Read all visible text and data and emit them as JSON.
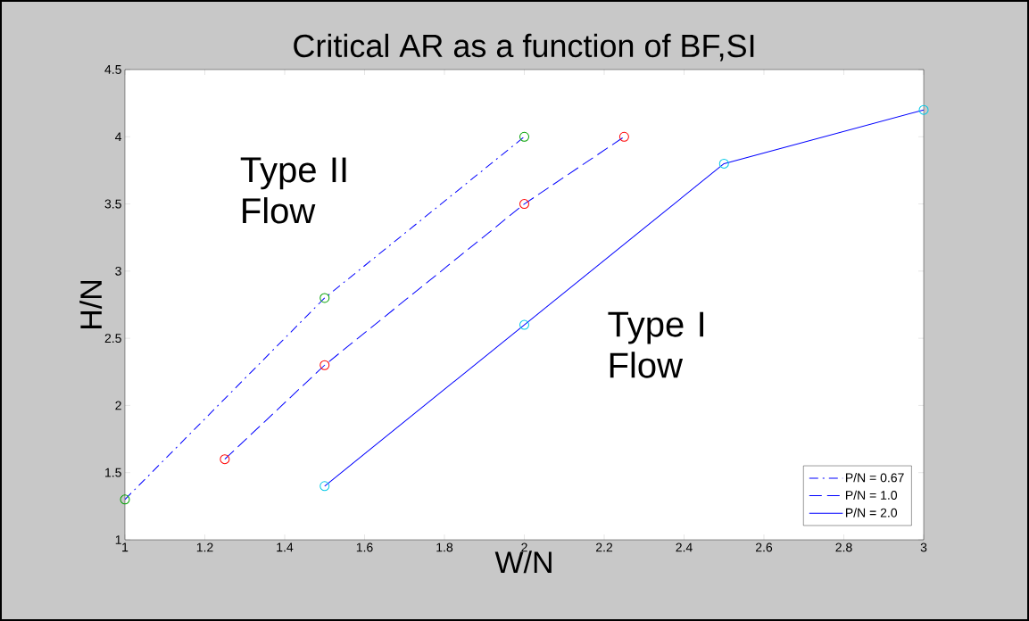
{
  "chart_data": {
    "type": "line",
    "title": "Critical AR as a function of BF,SI",
    "xlabel": "W/N",
    "ylabel": "H/N",
    "series": [
      {
        "name": "P/N = 0.67",
        "color": "#0000ff",
        "colors": [
          "#00a000",
          "#00a000",
          "#00a000"
        ],
        "line_style": "dashdot",
        "x": [
          1,
          1.5,
          2
        ],
        "values": [
          1.3,
          2.8,
          4.0
        ]
      },
      {
        "name": "P/N = 1.0",
        "color": "#0000ff",
        "colors": [
          "#ff0000",
          "#ff0000",
          "#ff0000",
          "#ff0000"
        ],
        "line_style": "dashed",
        "x": [
          1.25,
          1.5,
          2,
          2.25
        ],
        "values": [
          1.6,
          2.3,
          3.5,
          4.0
        ]
      },
      {
        "name": "P/N = 2.0",
        "color": "#0000ff",
        "colors": [
          "#00c8e6",
          "#00c8e6",
          "#00c8e6",
          "#00c8e6"
        ],
        "line_style": "solid",
        "x": [
          1.5,
          2,
          2.5,
          3
        ],
        "values": [
          1.4,
          2.6,
          3.8,
          4.2
        ]
      }
    ],
    "xlim": [
      1,
      3
    ],
    "ylim": [
      1,
      4.5
    ],
    "xticks": [
      1,
      1.2,
      1.4,
      1.6,
      1.8,
      2,
      2.2,
      2.4,
      2.6,
      2.8,
      3
    ],
    "yticks": [
      1,
      1.5,
      2,
      2.5,
      3,
      3.5,
      4,
      4.5
    ],
    "annotations": [
      "Type II Flow",
      "Type I Flow"
    ],
    "marker": "circle",
    "grid": false,
    "legend": "bottom right"
  }
}
